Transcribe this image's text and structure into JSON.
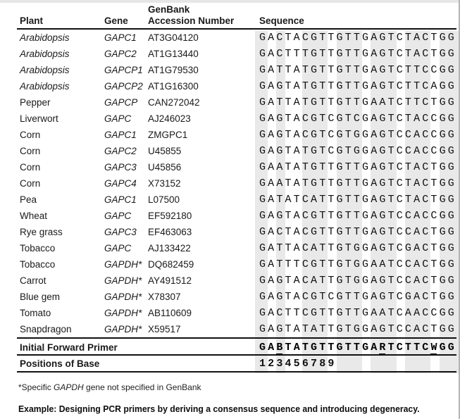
{
  "table": {
    "headers": {
      "plant": "Plant",
      "gene": "Gene",
      "accession_line1": "GenBank",
      "accession_line2": "Accession Number",
      "sequence": "Sequence"
    },
    "rows": [
      {
        "plant": "Arabidopsis",
        "plant_italic": true,
        "gene": "GAPC1",
        "accession": "AT3G04120",
        "sequence": "GACTACGTTGTTGAGTCTACTGG"
      },
      {
        "plant": "Arabidopsis",
        "plant_italic": true,
        "gene": "GAPC2",
        "accession": "AT1G13440",
        "sequence": "GACTTTGTTGTTGAGTCTACTGG"
      },
      {
        "plant": "Arabidopsis",
        "plant_italic": true,
        "gene": "GAPCP1",
        "accession": "AT1G79530",
        "sequence": "GATTATGTTGTTGAGTCTTCCGG"
      },
      {
        "plant": "Arabidopsis",
        "plant_italic": true,
        "gene": "GAPCP2",
        "accession": "AT1G16300",
        "sequence": "GAGTATGTTGTTGAGTCTTCAGG"
      },
      {
        "plant": "Pepper",
        "plant_italic": false,
        "gene": "GAPCP",
        "accession": "CAN272042",
        "sequence": "GATTATGTTGTTGAATCTTCTGG"
      },
      {
        "plant": "Liverwort",
        "plant_italic": false,
        "gene": "GAPC",
        "accession": "AJ246023",
        "sequence": "GAGTACGTCGTCGAGTCTACCGG"
      },
      {
        "plant": "Corn",
        "plant_italic": false,
        "gene": "GAPC1",
        "accession": "ZMGPC1",
        "sequence": "GAGTACGTCGTGGAGTCCACCGG"
      },
      {
        "plant": "Corn",
        "plant_italic": false,
        "gene": "GAPC2",
        "accession": "U45855",
        "sequence": "GAGTATGTCGTGGAGTCCACCGG"
      },
      {
        "plant": "Corn",
        "plant_italic": false,
        "gene": "GAPC3",
        "accession": "U45856",
        "sequence": "GAATATGTTGTTGAGTCTACTGG"
      },
      {
        "plant": "Corn",
        "plant_italic": false,
        "gene": "GAPC4",
        "accession": "X73152",
        "sequence": "GAATATGTTGTTGAGTCTACTGG"
      },
      {
        "plant": "Pea",
        "plant_italic": false,
        "gene": "GAPC1",
        "accession": "L07500",
        "sequence": "GATATCATTGTTGAGTCTACTGG"
      },
      {
        "plant": "Wheat",
        "plant_italic": false,
        "gene": "GAPC",
        "accession": "EF592180",
        "sequence": "GAGTACGTTGTTGAGTCCACCGG"
      },
      {
        "plant": "Rye grass",
        "plant_italic": false,
        "gene": "GAPC3",
        "accession": "EF463063",
        "sequence": "GACTACGTTGTTGAGTCCACTGG"
      },
      {
        "plant": "Tobacco",
        "plant_italic": false,
        "gene": "GAPC",
        "accession": "AJ133422",
        "sequence": "GATTACATTGTGGAGTCGACTGG"
      },
      {
        "plant": "Tobacco",
        "plant_italic": false,
        "gene": "GAPDH*",
        "accession": "DQ682459",
        "sequence": "GATTTCGTTGTGGAATCCACTGG"
      },
      {
        "plant": "Carrot",
        "plant_italic": false,
        "gene": "GAPDH*",
        "accession": "AY491512",
        "sequence": "GAGTACATTGTGGAGTCCACTGG"
      },
      {
        "plant": "Blue gem",
        "plant_italic": false,
        "gene": "GAPDH*",
        "accession": "X78307",
        "sequence": "GAGTACGTCGTTGAGTCGACTGG"
      },
      {
        "plant": "Tomato",
        "plant_italic": false,
        "gene": "GAPDH*",
        "accession": "AB110609",
        "sequence": "GACTTCGTTGTTGAATCAACCGG"
      },
      {
        "plant": "Snapdragon",
        "plant_italic": false,
        "gene": "GAPDH*",
        "accession": "X59517",
        "sequence": "GAGTATATTGTGGAGTCCACTGG"
      }
    ],
    "primer": {
      "label": "Initial Forward Primer",
      "sequence": "GABTATGTTGTTGARTCTTCWGG",
      "underlined_positions": [
        3,
        15,
        21
      ]
    },
    "positions": {
      "label": "Positions of Base",
      "value": "123456789"
    },
    "sequence_column_stripes": [
      [
        1,
        1
      ],
      [
        3,
        3
      ],
      [
        6,
        8
      ],
      [
        10,
        12
      ],
      [
        14,
        16
      ],
      [
        18,
        20
      ],
      [
        22,
        23
      ]
    ]
  },
  "footnote": {
    "prefix": "*Specific ",
    "gene": "GAPDH",
    "suffix": " gene not specified in GenBank"
  },
  "caption": "Example: Designing PCR primers by deriving a consensus sequence and introducing degeneracy.",
  "colors": {
    "stripe": "#e9e9e9",
    "rule": "#111111"
  }
}
